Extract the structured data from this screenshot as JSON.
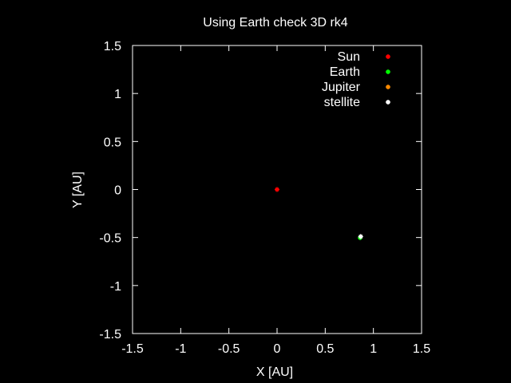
{
  "chart_data": {
    "type": "scatter",
    "title": "Using Earth check 3D rk4",
    "xlabel": "X [AU]",
    "ylabel": "Y [AU]",
    "xlim": [
      -1.5,
      1.5
    ],
    "ylim": [
      -1.5,
      1.5
    ],
    "xticks": [
      -1.5,
      -1,
      -0.5,
      0,
      0.5,
      1,
      1.5
    ],
    "yticks": [
      -1.5,
      -1,
      -0.5,
      0,
      0.5,
      1,
      1.5
    ],
    "xtick_labels": [
      "-1.5",
      "-1",
      "-0.5",
      "0",
      "0.5",
      "1",
      "1.5"
    ],
    "ytick_labels": [
      "-1.5",
      "-1",
      "-0.5",
      "0",
      "0.5",
      "1",
      "1.5"
    ],
    "grid": false,
    "legend_position": "top-right",
    "background": "#000000",
    "axis_color": "#ffffff",
    "series": [
      {
        "name": "Sun",
        "color": "#ff0000",
        "points": [
          [
            0.0,
            0.0
          ]
        ]
      },
      {
        "name": "Earth",
        "color": "#00ff00",
        "points": [
          [
            0.862,
            -0.503
          ]
        ]
      },
      {
        "name": "Jupiter",
        "color": "#ff8c00",
        "points": []
      },
      {
        "name": "stellite",
        "color": "#ffffff",
        "points": [
          [
            0.868,
            -0.49
          ]
        ]
      }
    ]
  }
}
